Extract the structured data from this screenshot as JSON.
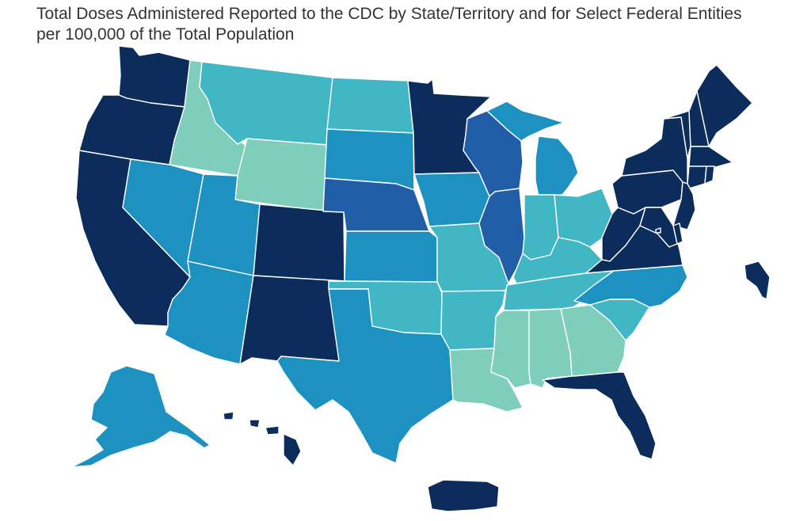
{
  "title": {
    "line1": "Total Doses Administered Reported to the CDC by State/Territory and for Select Federal Entities",
    "line2": "per 100,000 of the Total Population"
  },
  "colors": {
    "level_1": "#7fcdbb",
    "level_2": "#41b6c4",
    "level_3": "#1d91c0",
    "level_4": "#225ea8",
    "level_5": "#0c2c5c",
    "border": "#ffffff",
    "background": "#ffffff"
  },
  "regions": [
    {
      "id": "WA",
      "level": 5
    },
    {
      "id": "OR",
      "level": 5
    },
    {
      "id": "CA",
      "level": 5
    },
    {
      "id": "ID",
      "level": 1
    },
    {
      "id": "NV",
      "level": 3
    },
    {
      "id": "MT",
      "level": 2
    },
    {
      "id": "WY",
      "level": 1
    },
    {
      "id": "UT",
      "level": 3
    },
    {
      "id": "AZ",
      "level": 3
    },
    {
      "id": "CO",
      "level": 5
    },
    {
      "id": "NM",
      "level": 5
    },
    {
      "id": "ND",
      "level": 2
    },
    {
      "id": "SD",
      "level": 3
    },
    {
      "id": "NE",
      "level": 4
    },
    {
      "id": "KS",
      "level": 3
    },
    {
      "id": "OK",
      "level": 2
    },
    {
      "id": "TX",
      "level": 3
    },
    {
      "id": "MN",
      "level": 5
    },
    {
      "id": "IA",
      "level": 3
    },
    {
      "id": "MO",
      "level": 2
    },
    {
      "id": "AR",
      "level": 2
    },
    {
      "id": "LA",
      "level": 1
    },
    {
      "id": "WI",
      "level": 4
    },
    {
      "id": "IL",
      "level": 4
    },
    {
      "id": "MI",
      "level": 3
    },
    {
      "id": "IN",
      "level": 2
    },
    {
      "id": "OH",
      "level": 2
    },
    {
      "id": "KY",
      "level": 2
    },
    {
      "id": "TN",
      "level": 2
    },
    {
      "id": "MS",
      "level": 1
    },
    {
      "id": "AL",
      "level": 1
    },
    {
      "id": "GA",
      "level": 1
    },
    {
      "id": "FL",
      "level": 5
    },
    {
      "id": "SC",
      "level": 2
    },
    {
      "id": "NC",
      "level": 3
    },
    {
      "id": "VA",
      "level": 5
    },
    {
      "id": "WV",
      "level": 5
    },
    {
      "id": "PA",
      "level": 5
    },
    {
      "id": "NY",
      "level": 5
    },
    {
      "id": "VT",
      "level": 5
    },
    {
      "id": "NH",
      "level": 5
    },
    {
      "id": "ME",
      "level": 5
    },
    {
      "id": "MA",
      "level": 5
    },
    {
      "id": "CT",
      "level": 5
    },
    {
      "id": "RI",
      "level": 5
    },
    {
      "id": "NJ",
      "level": 5
    },
    {
      "id": "DE",
      "level": 5
    },
    {
      "id": "MD",
      "level": 5
    },
    {
      "id": "DC",
      "level": 5
    },
    {
      "id": "AK",
      "level": 3
    },
    {
      "id": "HI",
      "level": 5
    },
    {
      "id": "PR",
      "level": 5
    }
  ]
}
